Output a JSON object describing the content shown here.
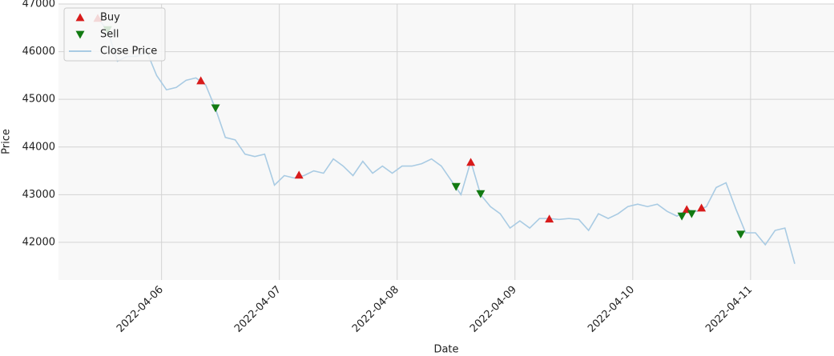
{
  "chart_data": {
    "type": "line",
    "xlabel": "Date",
    "ylabel": "Price",
    "x": [
      "2022-04-05 11:00",
      "2022-04-05 13:00",
      "2022-04-05 15:00",
      "2022-04-05 17:00",
      "2022-04-05 19:00",
      "2022-04-05 21:00",
      "2022-04-05 23:00",
      "2022-04-06 01:00",
      "2022-04-06 03:00",
      "2022-04-06 05:00",
      "2022-04-06 07:00",
      "2022-04-06 09:00",
      "2022-04-06 11:00",
      "2022-04-06 13:00",
      "2022-04-06 15:00",
      "2022-04-06 17:00",
      "2022-04-06 19:00",
      "2022-04-06 21:00",
      "2022-04-06 23:00",
      "2022-04-07 01:00",
      "2022-04-07 03:00",
      "2022-04-07 05:00",
      "2022-04-07 07:00",
      "2022-04-07 09:00",
      "2022-04-07 11:00",
      "2022-04-07 13:00",
      "2022-04-07 15:00",
      "2022-04-07 17:00",
      "2022-04-07 19:00",
      "2022-04-07 21:00",
      "2022-04-07 23:00",
      "2022-04-08 01:00",
      "2022-04-08 03:00",
      "2022-04-08 05:00",
      "2022-04-08 07:00",
      "2022-04-08 09:00",
      "2022-04-08 11:00",
      "2022-04-08 13:00",
      "2022-04-08 15:00",
      "2022-04-08 17:00",
      "2022-04-08 19:00",
      "2022-04-08 21:00",
      "2022-04-08 23:00",
      "2022-04-09 01:00",
      "2022-04-09 03:00",
      "2022-04-09 05:00",
      "2022-04-09 07:00",
      "2022-04-09 09:00",
      "2022-04-09 11:00",
      "2022-04-09 13:00",
      "2022-04-09 15:00",
      "2022-04-09 17:00",
      "2022-04-09 19:00",
      "2022-04-09 21:00",
      "2022-04-09 23:00",
      "2022-04-10 01:00",
      "2022-04-10 03:00",
      "2022-04-10 05:00",
      "2022-04-10 07:00",
      "2022-04-10 09:00",
      "2022-04-10 11:00",
      "2022-04-10 13:00",
      "2022-04-10 15:00",
      "2022-04-10 17:00",
      "2022-04-10 19:00",
      "2022-04-10 21:00",
      "2022-04-10 23:00",
      "2022-04-11 01:00",
      "2022-04-11 03:00",
      "2022-04-11 05:00",
      "2022-04-11 07:00",
      "2022-04-11 09:00"
    ],
    "series": [
      {
        "name": "Buy",
        "type": "scatter",
        "marker": "up",
        "color": "#d81b1b",
        "x": [
          "2022-04-05 11:00",
          "2022-04-06 08:00",
          "2022-04-07 04:00",
          "2022-04-08 15:00",
          "2022-04-09 07:00",
          "2022-04-10 11:00",
          "2022-04-10 14:00"
        ],
        "values": [
          46700,
          45390,
          43410,
          43680,
          42490,
          42690,
          42720
        ]
      },
      {
        "name": "Sell",
        "type": "scatter",
        "marker": "down",
        "color": "#127a12",
        "x": [
          "2022-04-05 13:00",
          "2022-04-06 11:00",
          "2022-04-08 12:00",
          "2022-04-08 17:00",
          "2022-04-10 10:00",
          "2022-04-10 12:00",
          "2022-04-10 22:00"
        ],
        "values": [
          46460,
          44820,
          43170,
          43020,
          42550,
          42600,
          42170
        ]
      },
      {
        "name": "Close Price",
        "type": "line",
        "color": "#a9cbe3",
        "values": [
          46700,
          46450,
          45800,
          45900,
          45900,
          46000,
          45500,
          45200,
          45250,
          45400,
          45450,
          45300,
          44800,
          44200,
          44150,
          43850,
          43800,
          43850,
          43200,
          43400,
          43350,
          43400,
          43500,
          43450,
          43750,
          43600,
          43400,
          43700,
          43450,
          43600,
          43450,
          43600,
          43600,
          43650,
          43750,
          43600,
          43300,
          43000,
          43700,
          43000,
          42750,
          42600,
          42300,
          42450,
          42300,
          42500,
          42500,
          42480,
          42500,
          42480,
          42250,
          42600,
          42500,
          42600,
          42750,
          42800,
          42750,
          42800,
          42650,
          42550,
          42680,
          42650,
          42750,
          43150,
          43250,
          42700,
          42200,
          42200,
          41950,
          42250,
          42300,
          41550
        ]
      }
    ],
    "xlim": [
      "2022-04-05 03:00",
      "2022-04-11 17:00"
    ],
    "xticks": [
      "2022-04-06",
      "2022-04-07",
      "2022-04-08",
      "2022-04-09",
      "2022-04-10",
      "2022-04-11"
    ],
    "ylim": [
      41210,
      47000
    ],
    "yticks": [
      42000,
      43000,
      44000,
      45000,
      46000,
      47000
    ],
    "grid": true,
    "legend": "upper left"
  }
}
